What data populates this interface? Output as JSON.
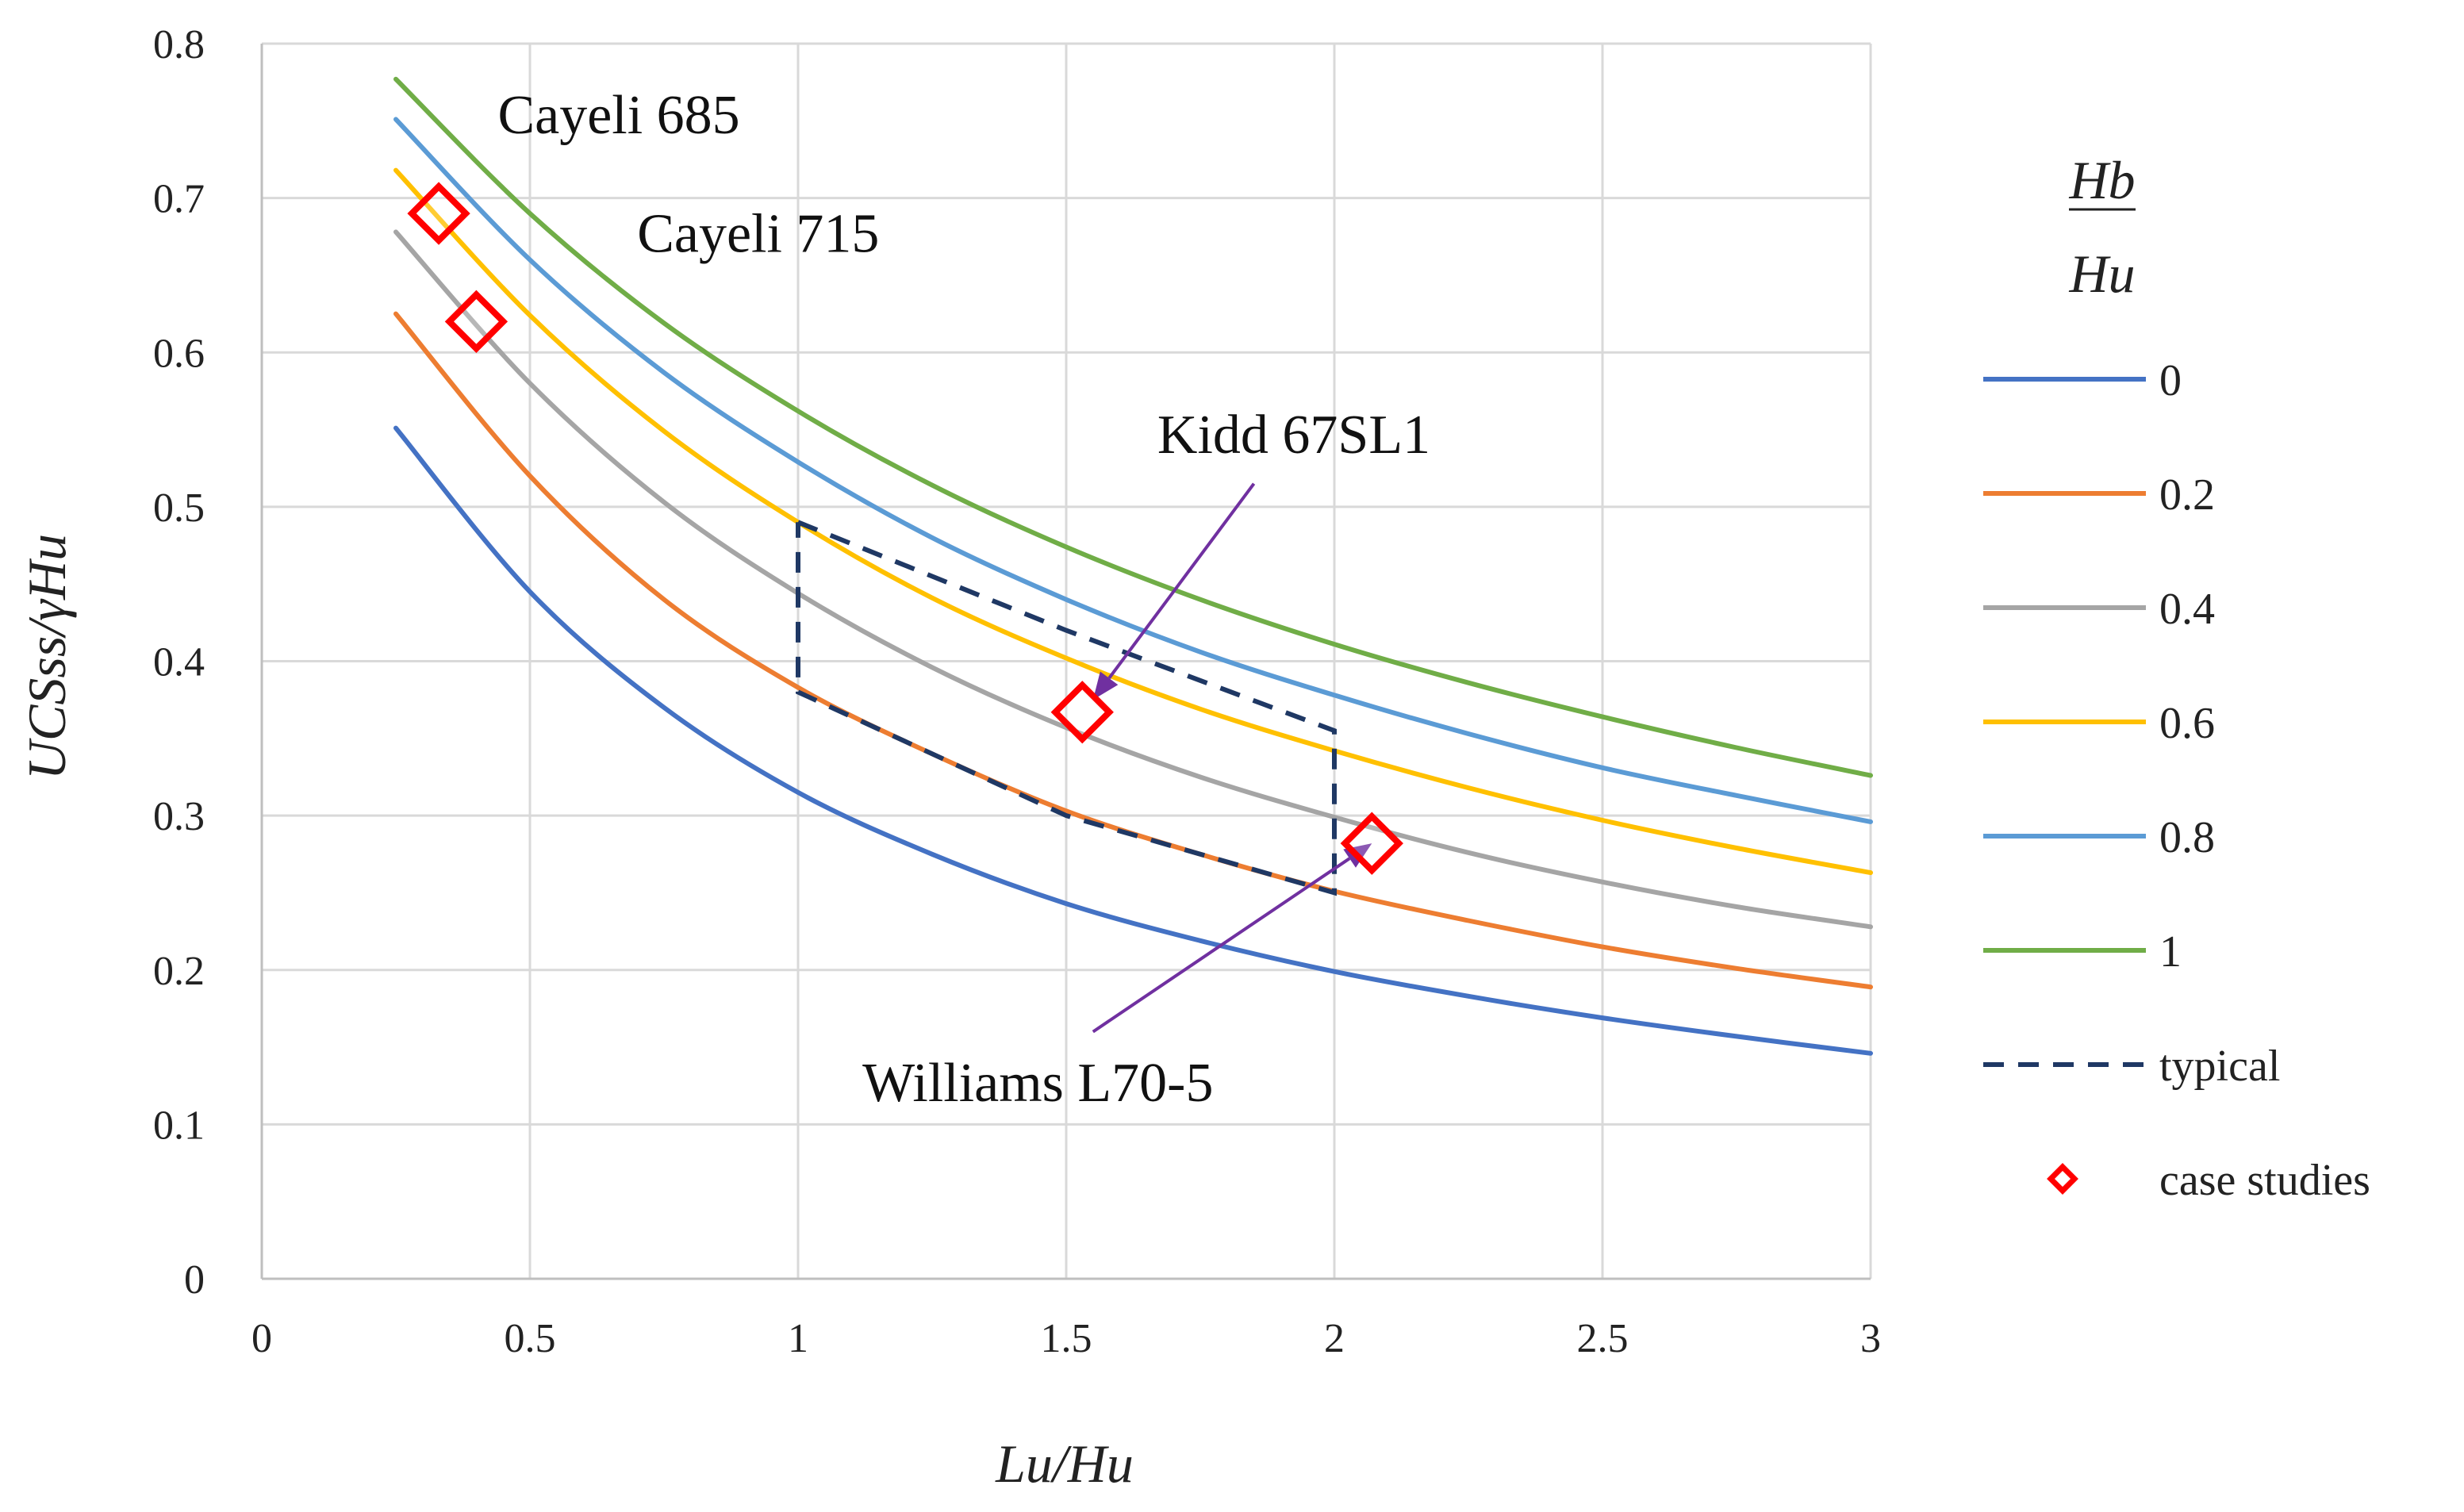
{
  "chart_data": {
    "type": "line",
    "title": "",
    "xlabel": "Lu/Hu",
    "ylabel": "UCSss/γHu",
    "xlim": [
      0,
      3
    ],
    "ylim": [
      0,
      0.8
    ],
    "x_ticks": [
      "0",
      "0.5",
      "1",
      "1.5",
      "2",
      "2.5",
      "3"
    ],
    "y_ticks": [
      "0",
      "0.1",
      "0.2",
      "0.3",
      "0.4",
      "0.5",
      "0.6",
      "0.7",
      "0.8"
    ],
    "grid": true,
    "legend_position": "right",
    "legend_title": {
      "numerator": "Hb",
      "denominator": "Hu"
    },
    "x": [
      0.25,
      0.5,
      0.75,
      1.0,
      1.25,
      1.5,
      1.75,
      2.0,
      2.25,
      2.5,
      2.75,
      3.0
    ],
    "series": [
      {
        "name": "0",
        "color": "#4472C4",
        "values": [
          0.551,
          0.445,
          0.37,
          0.315,
          0.275,
          0.243,
          0.219,
          0.199,
          0.183,
          0.169,
          0.157,
          0.146
        ]
      },
      {
        "name": "0.2",
        "color": "#ED7D31",
        "values": [
          0.625,
          0.52,
          0.44,
          0.383,
          0.34,
          0.303,
          0.275,
          0.251,
          0.232,
          0.215,
          0.201,
          0.189
        ]
      },
      {
        "name": "0.4",
        "color": "#A5A5A5",
        "values": [
          0.678,
          0.58,
          0.503,
          0.444,
          0.396,
          0.357,
          0.325,
          0.299,
          0.276,
          0.257,
          0.241,
          0.228
        ]
      },
      {
        "name": "0.6",
        "color": "#FFC000",
        "values": [
          0.718,
          0.624,
          0.549,
          0.49,
          0.441,
          0.402,
          0.369,
          0.342,
          0.318,
          0.297,
          0.279,
          0.263
        ]
      },
      {
        "name": "0.8",
        "color": "#5B9BD5",
        "values": [
          0.751,
          0.66,
          0.587,
          0.529,
          0.48,
          0.44,
          0.406,
          0.378,
          0.353,
          0.331,
          0.313,
          0.296
        ]
      },
      {
        "name": "1",
        "color": "#70AD47",
        "values": [
          0.777,
          0.69,
          0.619,
          0.562,
          0.514,
          0.474,
          0.44,
          0.411,
          0.386,
          0.364,
          0.344,
          0.326
        ]
      }
    ],
    "typical": {
      "name": "typical",
      "color": "#1F3864",
      "points": [
        [
          1.0,
          0.49
        ],
        [
          1.5,
          0.42
        ],
        [
          2.0,
          0.355
        ],
        [
          2.0,
          0.25
        ],
        [
          1.5,
          0.3
        ],
        [
          1.0,
          0.38
        ],
        [
          1.0,
          0.49
        ]
      ]
    },
    "case_studies": {
      "name": "case studies",
      "color": "#FF0000",
      "points": [
        {
          "label": "Cayeli 685",
          "x": 0.33,
          "y": 0.69
        },
        {
          "label": "Cayeli 715",
          "x": 0.4,
          "y": 0.62
        },
        {
          "label": "Kidd 67SL1",
          "x": 1.53,
          "y": 0.367
        },
        {
          "label": "Williams L70-5",
          "x": 2.07,
          "y": 0.282
        }
      ]
    },
    "annotations": [
      {
        "text": "Cayeli 685",
        "x": 0.44,
        "y": 0.742,
        "arrow": null
      },
      {
        "text": "Cayeli 715",
        "x": 0.7,
        "y": 0.665,
        "arrow": null
      },
      {
        "text": "Kidd 67SL1",
        "x": 1.67,
        "y": 0.535,
        "arrow": {
          "from": [
            1.85,
            0.515
          ],
          "to": [
            1.55,
            0.375
          ]
        }
      },
      {
        "text": "Williams L70-5",
        "x": 1.12,
        "y": 0.115,
        "arrow": {
          "from": [
            1.55,
            0.16
          ],
          "to": [
            2.07,
            0.282
          ]
        }
      }
    ]
  }
}
